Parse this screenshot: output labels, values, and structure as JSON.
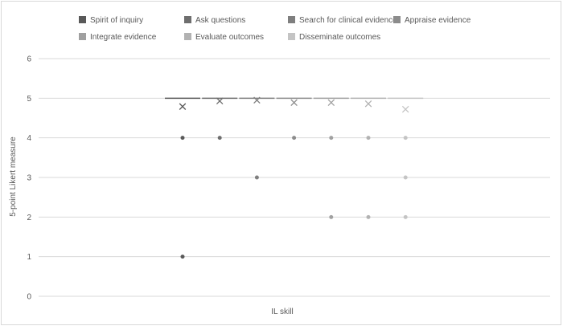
{
  "chart_data": {
    "type": "box",
    "xlabel": "IL skill",
    "ylabel": "5-point Likert measure",
    "ylim": [
      0,
      6
    ],
    "yticks": [
      0,
      1,
      2,
      3,
      4,
      5,
      6
    ],
    "grid": true,
    "legend_position": "top",
    "series": [
      {
        "name": "Spirit of inquiry",
        "color": "#595959",
        "median": 5,
        "mean": 4.79,
        "outliers": [
          4,
          1
        ]
      },
      {
        "name": "Ask questions",
        "color": "#6e6e6e",
        "median": 5,
        "mean": 4.93,
        "outliers": [
          4
        ]
      },
      {
        "name": "Search for clinical evidence",
        "color": "#7f7f7f",
        "median": 5,
        "mean": 4.95,
        "outliers": [
          3
        ]
      },
      {
        "name": "Appraise evidence",
        "color": "#8c8c8c",
        "median": 5,
        "mean": 4.89,
        "outliers": [
          4
        ]
      },
      {
        "name": "Integrate evidence",
        "color": "#a0a0a0",
        "median": 5,
        "mean": 4.89,
        "outliers": [
          4,
          2
        ]
      },
      {
        "name": "Evaluate outcomes",
        "color": "#b2b2b2",
        "median": 5,
        "mean": 4.86,
        "outliers": [
          4,
          2
        ]
      },
      {
        "name": "Disseminate outcomes",
        "color": "#c4c4c4",
        "median": 5,
        "mean": 4.72,
        "outliers": [
          4,
          3,
          2
        ]
      }
    ]
  }
}
